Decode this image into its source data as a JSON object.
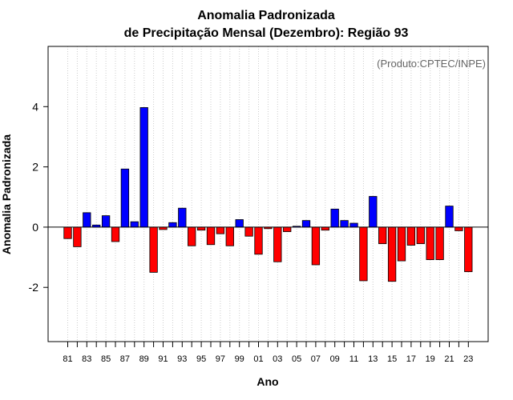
{
  "chart_data": {
    "type": "bar",
    "title": "Anomalia Padronizada",
    "subtitle": "de Precipitação Mensal (Dezembro): Região 93",
    "credit": "(Produto:CPTEC/INPE)",
    "xlabel": "Ano",
    "ylabel": "Anomalia Padronizada",
    "ylim": [
      -3.8,
      6.0
    ],
    "yticks": [
      -2,
      0,
      2,
      4
    ],
    "grid": "vertical-dotted",
    "positive_color": "#0000ff",
    "negative_color": "#ff0000",
    "categories": [
      "81",
      "82",
      "83",
      "84",
      "85",
      "86",
      "87",
      "88",
      "89",
      "90",
      "91",
      "92",
      "93",
      "94",
      "95",
      "96",
      "97",
      "98",
      "99",
      "00",
      "01",
      "02",
      "03",
      "04",
      "05",
      "06",
      "07",
      "08",
      "09",
      "10",
      "11",
      "12",
      "13",
      "14",
      "15",
      "16",
      "17",
      "18",
      "19",
      "20",
      "21",
      "22",
      "23"
    ],
    "x_tick_labels": [
      "81",
      "83",
      "85",
      "87",
      "89",
      "91",
      "93",
      "95",
      "97",
      "99",
      "01",
      "03",
      "05",
      "07",
      "09",
      "11",
      "13",
      "15",
      "17",
      "19",
      "21",
      "23"
    ],
    "values": [
      -0.38,
      -0.65,
      0.48,
      0.07,
      0.38,
      -0.48,
      1.93,
      0.18,
      3.97,
      -1.5,
      -0.08,
      0.15,
      0.63,
      -0.62,
      -0.1,
      -0.58,
      -0.22,
      -0.62,
      0.25,
      -0.3,
      -0.9,
      -0.05,
      -1.15,
      -0.15,
      0.03,
      0.22,
      -1.25,
      -0.1,
      0.6,
      0.22,
      0.13,
      -1.78,
      1.02,
      -0.55,
      -1.8,
      -1.12,
      -0.6,
      -0.55,
      -1.08,
      -1.08,
      0.7,
      -0.12,
      -1.48
    ]
  }
}
